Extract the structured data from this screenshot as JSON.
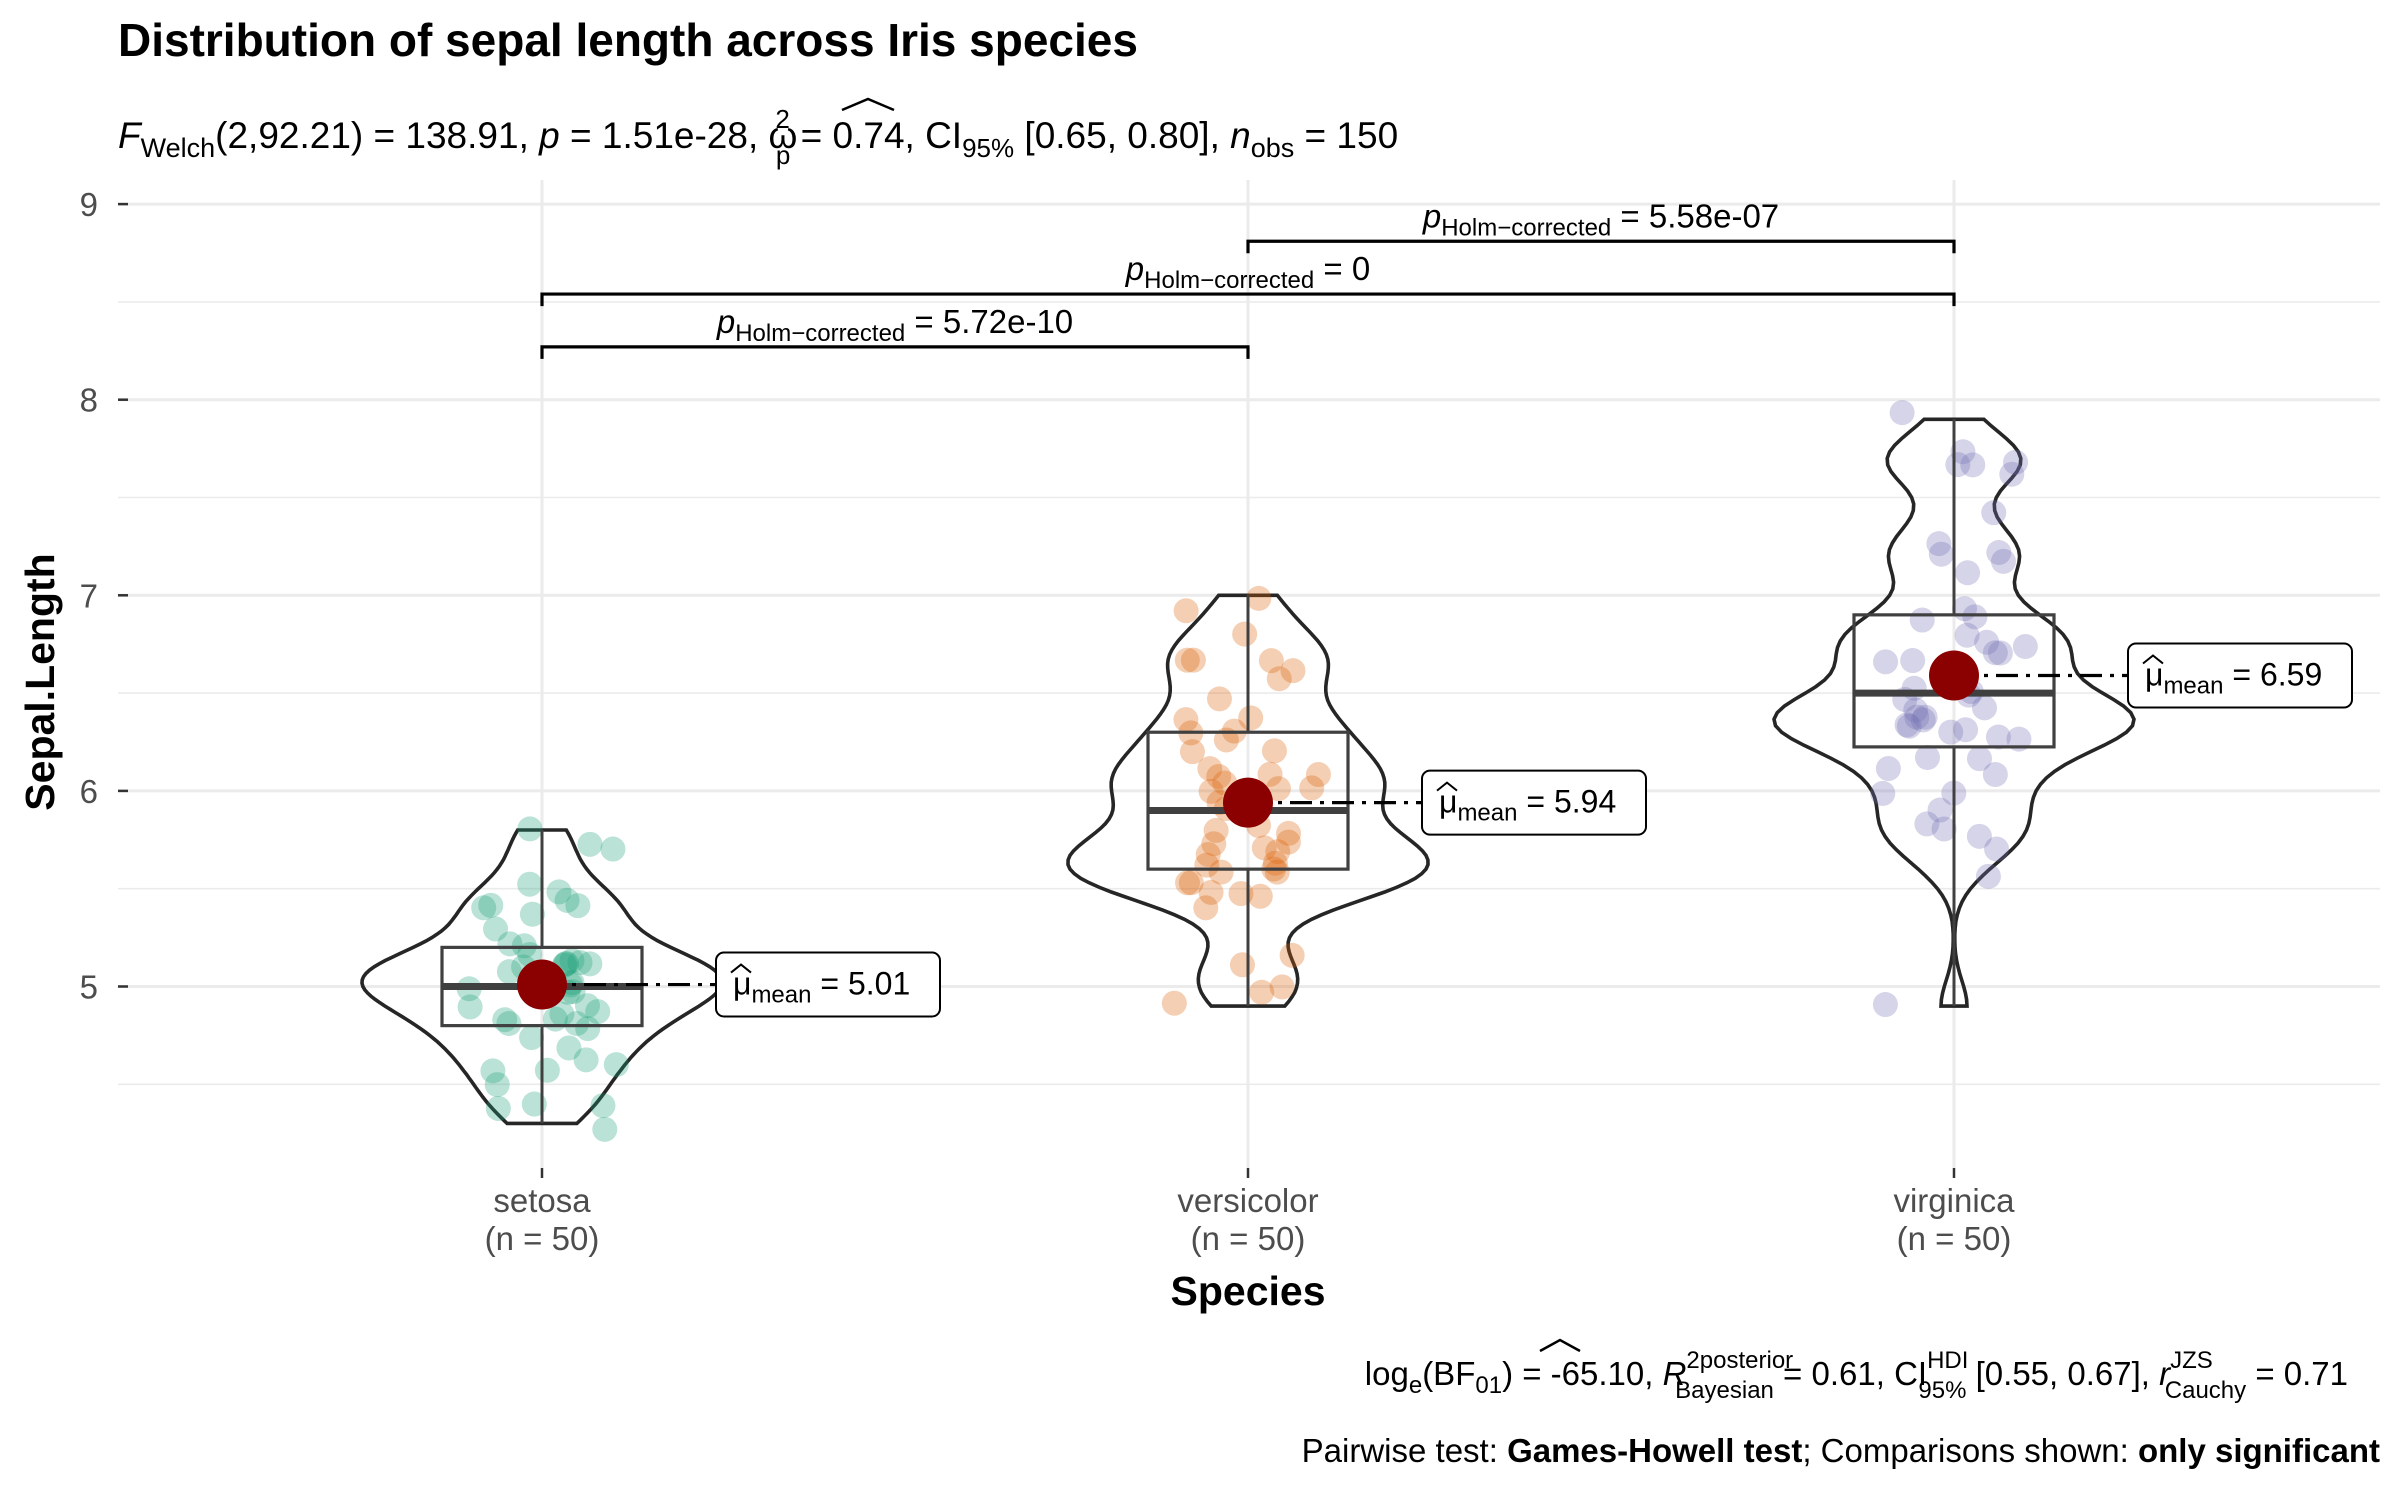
{
  "chart_data": {
    "type": "violin",
    "title": "Distribution of sepal length across Iris species",
    "subtitle": {
      "F": "F",
      "F_sub": "Welch",
      "part1": "(2,92.21) = 138.91, ",
      "p": "p",
      "part2": " = 1.51e-28, ",
      "omega": "ω",
      "omega_sup": "2",
      "omega_sub": "p",
      "part3": " = 0.74, CI",
      "ci_sub": "95%",
      "part4": " [0.65, 0.80], ",
      "n": "n",
      "n_sub": "obs",
      "part5": " = 150"
    },
    "xlabel": "Species",
    "ylabel": "Sepal.Length",
    "ylim": [
      4.05,
      9.05
    ],
    "yticks": [
      "5",
      "6",
      "7",
      "8",
      "9"
    ],
    "categories": [
      {
        "name": "setosa",
        "n_label": "(n = 50)",
        "mean": 5.01,
        "mean_label": "5.01",
        "q1": 4.8,
        "median": 5.0,
        "q3": 5.2,
        "min": 4.3,
        "max": 5.8,
        "color": "#1b9e77",
        "points": [
          5.1,
          4.9,
          4.7,
          4.6,
          5.0,
          5.4,
          4.6,
          5.0,
          4.4,
          4.9,
          5.4,
          4.8,
          4.8,
          4.3,
          5.8,
          5.7,
          5.4,
          5.1,
          5.7,
          5.1,
          5.4,
          5.1,
          4.6,
          5.1,
          4.8,
          5.0,
          5.0,
          5.2,
          5.2,
          4.7,
          4.8,
          5.4,
          5.2,
          5.5,
          4.9,
          5.0,
          5.5,
          4.9,
          4.4,
          5.1,
          5.0,
          4.5,
          4.4,
          5.0,
          5.1,
          4.8,
          5.1,
          4.6,
          5.3,
          5.0
        ]
      },
      {
        "name": "versicolor",
        "n_label": "(n = 50)",
        "mean": 5.94,
        "mean_label": "5.94",
        "q1": 5.6,
        "median": 5.9,
        "q3": 6.3,
        "min": 4.9,
        "max": 7.0,
        "color": "#d95f02",
        "points": [
          7.0,
          6.4,
          6.9,
          5.5,
          6.5,
          5.7,
          6.3,
          4.9,
          6.6,
          5.2,
          5.0,
          5.9,
          6.0,
          6.1,
          5.6,
          6.7,
          5.6,
          5.8,
          6.2,
          5.6,
          5.9,
          6.1,
          6.3,
          6.1,
          6.4,
          6.6,
          6.8,
          6.7,
          6.0,
          5.7,
          5.5,
          5.5,
          5.8,
          6.0,
          5.4,
          6.0,
          6.7,
          6.3,
          5.6,
          5.5,
          5.5,
          6.1,
          5.8,
          5.0,
          5.6,
          5.7,
          5.7,
          6.2,
          5.1,
          5.7
        ]
      },
      {
        "name": "virginica",
        "n_label": "(n = 50)",
        "mean": 6.59,
        "mean_label": "6.59",
        "q1": 6.225,
        "median": 6.5,
        "q3": 6.9,
        "min": 4.9,
        "max": 7.9,
        "color": "#7570b3",
        "points": [
          6.3,
          5.8,
          7.1,
          6.3,
          6.5,
          7.6,
          4.9,
          7.3,
          6.7,
          7.2,
          6.5,
          6.4,
          6.8,
          5.7,
          5.8,
          6.4,
          6.5,
          7.7,
          7.7,
          6.0,
          6.9,
          5.6,
          7.7,
          6.3,
          6.7,
          7.2,
          6.2,
          6.1,
          6.4,
          7.2,
          7.4,
          7.9,
          6.4,
          6.3,
          6.1,
          7.7,
          6.3,
          6.4,
          6.0,
          6.9,
          6.7,
          6.9,
          5.8,
          6.8,
          6.7,
          6.7,
          6.3,
          6.5,
          6.2,
          5.9
        ]
      }
    ],
    "mean_label_prefix": "μ",
    "mean_label_sub": "mean",
    "mean_label_eq": " = ",
    "mean_color": "#8b0000",
    "comparisons": [
      {
        "from": 0,
        "to": 1,
        "y": 8.27,
        "p_label": "p",
        "p_sub": "Holm−corrected",
        "value": " = 5.72e-10"
      },
      {
        "from": 0,
        "to": 2,
        "y": 8.54,
        "p_label": "p",
        "p_sub": "Holm−corrected",
        "value": " = 0"
      },
      {
        "from": 1,
        "to": 2,
        "y": 8.81,
        "p_label": "p",
        "p_sub": "Holm−corrected",
        "value": " = 5.58e-07"
      }
    ],
    "caption1": {
      "a": "log",
      "a_sub": "e",
      "b": "(BF",
      "b_sub": "01",
      "c": ") = -65.10, ",
      "R": "R",
      "R_sup": "2",
      "R_sup2": "posterior",
      "R_sub": "Bayesian",
      "d": " = 0.61, CI",
      "ci_sup": "HDI",
      "ci_sub": "95%",
      "e": " [0.55, 0.67], ",
      "r": "r",
      "r_sup": "JZS",
      "r_sub": "Cauchy",
      "f": " = 0.71"
    },
    "caption2": {
      "a": "Pairwise test: ",
      "b": "Games-Howell test",
      "c": "; Comparisons shown: ",
      "d": "only significant"
    },
    "grid": true
  }
}
